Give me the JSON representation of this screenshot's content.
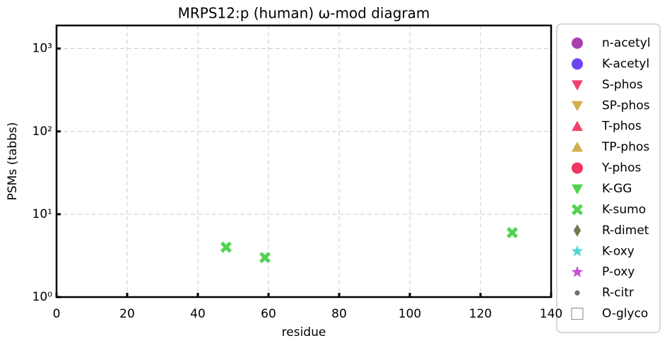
{
  "chart_data": {
    "type": "scatter",
    "title": "MRPS12:p (human) ω-mod diagram",
    "x_label": "residue",
    "y_label": "PSMs (tabbs)",
    "log_y": true,
    "grid": true,
    "legend": "outside right",
    "xlim": [
      0,
      140
    ],
    "xticks": [
      0,
      20,
      40,
      60,
      80,
      100,
      120,
      140
    ],
    "ylim": [
      1,
      1900
    ],
    "yticks": [
      {
        "value": 1,
        "label": "10⁰"
      },
      {
        "value": 10,
        "label": "10¹"
      },
      {
        "value": 100,
        "label": "10²"
      },
      {
        "value": 1000,
        "label": "10³"
      }
    ],
    "series": [
      {
        "name": "n-acetyl",
        "color": "#9b1fa0",
        "marker": "circle",
        "x": [],
        "values": []
      },
      {
        "name": "K-acetyl",
        "color": "#5522ee",
        "marker": "circle",
        "x": [],
        "values": []
      },
      {
        "name": "S-phos",
        "color": "#ee2255",
        "marker": "triangle-down",
        "x": [],
        "values": []
      },
      {
        "name": "SP-phos",
        "color": "#c9a030",
        "marker": "triangle-down",
        "x": [],
        "values": []
      },
      {
        "name": "T-phos",
        "color": "#ee2255",
        "marker": "triangle-up",
        "x": [],
        "values": []
      },
      {
        "name": "TP-phos",
        "color": "#c9a030",
        "marker": "triangle-up",
        "x": [],
        "values": []
      },
      {
        "name": "Y-phos",
        "color": "#ee1144",
        "marker": "circle",
        "x": [],
        "values": []
      },
      {
        "name": "K-GG",
        "color": "#33cc33",
        "marker": "triangle-down",
        "x": [],
        "values": []
      },
      {
        "name": "K-sumo",
        "color": "#33cc33",
        "marker": "x",
        "x": [
          48,
          59,
          129
        ],
        "values": [
          4,
          3,
          6
        ]
      },
      {
        "name": "R-dimet",
        "color": "#556633",
        "marker": "diamond",
        "x": [],
        "values": []
      },
      {
        "name": "K-oxy",
        "color": "#33cccc",
        "marker": "star",
        "x": [],
        "values": []
      },
      {
        "name": "P-oxy",
        "color": "#bb33cc",
        "marker": "star",
        "x": [],
        "values": []
      },
      {
        "name": "R-citr",
        "color": "#555555",
        "marker": "dot",
        "x": [],
        "values": []
      },
      {
        "name": "O-glyco",
        "color": "#999999",
        "marker": "hollow-square",
        "x": [],
        "values": []
      }
    ]
  }
}
